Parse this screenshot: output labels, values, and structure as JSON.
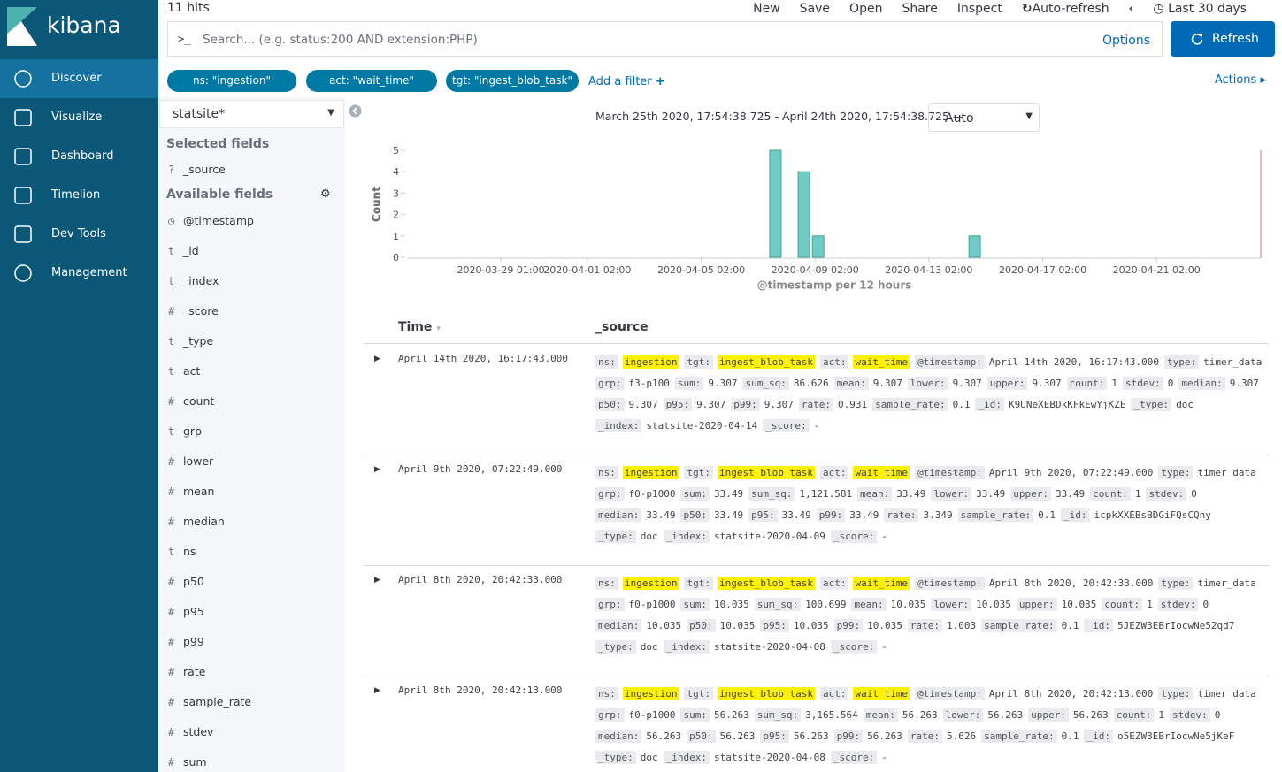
{
  "nav": {
    "logo": "kibana",
    "items": [
      "Discover",
      "Visualize",
      "Dashboard",
      "Timelion",
      "Dev Tools",
      "Management"
    ]
  },
  "topbar": {
    "hits": "11 hits",
    "menu": [
      "New",
      "Save",
      "Open",
      "Share",
      "Inspect",
      "Auto-refresh"
    ],
    "time_range": "Last 30 days",
    "search_prompt": ">_",
    "search_placeholder": "Search... (e.g. status:200 AND extension:PHP)",
    "options": "Options",
    "refresh": "Refresh"
  },
  "filters": {
    "pills": [
      "ns: \"ingestion\"",
      "act: \"wait_time\"",
      "tgt: \"ingest_blob_task\""
    ],
    "add": "Add a filter",
    "actions": "Actions"
  },
  "sidebar": {
    "index": "statsite*",
    "selected_title": "Selected fields",
    "selected": [
      {
        "type": "?",
        "name": "_source"
      }
    ],
    "available_title": "Available fields",
    "available": [
      {
        "name": "@timestamp"
      },
      {
        "type": "t",
        "name": "_id"
      },
      {
        "type": "t",
        "name": "_index"
      },
      {
        "type": "#",
        "name": "_score"
      },
      {
        "type": "t",
        "name": "_type"
      },
      {
        "type": "t",
        "name": "act"
      },
      {
        "type": "#",
        "name": "count"
      },
      {
        "type": "t",
        "name": "grp"
      },
      {
        "type": "#",
        "name": "lower"
      },
      {
        "type": "#",
        "name": "mean"
      },
      {
        "type": "#",
        "name": "median"
      },
      {
        "type": "t",
        "name": "ns"
      },
      {
        "type": "#",
        "name": "p50"
      },
      {
        "type": "#",
        "name": "p95"
      },
      {
        "type": "#",
        "name": "p99"
      },
      {
        "type": "#",
        "name": "rate"
      },
      {
        "type": "#",
        "name": "sample_rate"
      },
      {
        "type": "#",
        "name": "stdev"
      },
      {
        "type": "#",
        "name": "sum"
      }
    ]
  },
  "histogram": {
    "range": "March 25th 2020, 17:54:38.725 - April 24th 2020, 17:54:38.725 —",
    "interval": "Auto"
  },
  "chart_data": {
    "type": "bar",
    "ylabel": "Count",
    "xlabel": "@timestamp per 12 hours",
    "x": [
      "2020-04-07 14:00",
      "2020-04-08 14:00",
      "2020-04-09 02:00",
      "2020-04-14 14:00"
    ],
    "values": [
      5,
      4,
      1,
      1
    ],
    "color": "#6fcbc3",
    "xlim": [
      "2020-03-25 17:54",
      "2020-04-24 17:54"
    ],
    "xticks": [
      "2020-03-29 01:00",
      "2020-04-01 02:00",
      "2020-04-05 02:00",
      "2020-04-09 02:00",
      "2020-04-13 02:00",
      "2020-04-17 02:00",
      "2020-04-21 02:00"
    ],
    "ylim": [
      0,
      5
    ],
    "yticks": [
      0,
      1,
      2,
      3,
      4,
      5
    ]
  },
  "documents": {
    "columns": [
      "Time",
      "_source"
    ],
    "rows": [
      {
        "time": "April 14th 2020, 16:17:43.000",
        "fields": [
          [
            "ns:",
            "ingestion"
          ],
          [
            "tgt:",
            "ingest_blob_task"
          ],
          [
            "act:",
            "wait_time"
          ],
          [
            "@timestamp:",
            "April 14th 2020, 16:17:43.000"
          ],
          [
            "type:",
            "timer_data"
          ],
          [
            "grp:",
            "f3-p100"
          ],
          [
            "sum:",
            "9.307"
          ],
          [
            "sum_sq:",
            "86.626"
          ],
          [
            "mean:",
            "9.307"
          ],
          [
            "lower:",
            "9.307"
          ],
          [
            "upper:",
            "9.307"
          ],
          [
            "count:",
            "1"
          ],
          [
            "stdev:",
            "0"
          ],
          [
            "median:",
            "9.307"
          ],
          [
            "p50:",
            "9.307"
          ],
          [
            "p95:",
            "9.307"
          ],
          [
            "p99:",
            "9.307"
          ],
          [
            "rate:",
            "0.931"
          ],
          [
            "sample_rate:",
            "0.1"
          ],
          [
            "_id:",
            "K9UNeXEBDkKFkEwYjKZE"
          ],
          [
            "_type:",
            "doc"
          ],
          [
            "_index:",
            "statsite-2020-04-14"
          ],
          [
            "_score:",
            "-"
          ]
        ]
      },
      {
        "time": "April 9th 2020, 07:22:49.000",
        "fields": [
          [
            "ns:",
            "ingestion"
          ],
          [
            "tgt:",
            "ingest_blob_task"
          ],
          [
            "act:",
            "wait_time"
          ],
          [
            "@timestamp:",
            "April 9th 2020, 07:22:49.000"
          ],
          [
            "type:",
            "timer_data"
          ],
          [
            "grp:",
            "f0-p1000"
          ],
          [
            "sum:",
            "33.49"
          ],
          [
            "sum_sq:",
            "1,121.581"
          ],
          [
            "mean:",
            "33.49"
          ],
          [
            "lower:",
            "33.49"
          ],
          [
            "upper:",
            "33.49"
          ],
          [
            "count:",
            "1"
          ],
          [
            "stdev:",
            "0"
          ],
          [
            "median:",
            "33.49"
          ],
          [
            "p50:",
            "33.49"
          ],
          [
            "p95:",
            "33.49"
          ],
          [
            "p99:",
            "33.49"
          ],
          [
            "rate:",
            "3.349"
          ],
          [
            "sample_rate:",
            "0.1"
          ],
          [
            "_id:",
            "icpkXXEBsBDGiFQsCQny"
          ],
          [
            "_type:",
            "doc"
          ],
          [
            "_index:",
            "statsite-2020-04-09"
          ],
          [
            "_score:",
            "-"
          ]
        ]
      },
      {
        "time": "April 8th 2020, 20:42:33.000",
        "fields": [
          [
            "ns:",
            "ingestion"
          ],
          [
            "tgt:",
            "ingest_blob_task"
          ],
          [
            "act:",
            "wait_time"
          ],
          [
            "@timestamp:",
            "April 8th 2020, 20:42:33.000"
          ],
          [
            "type:",
            "timer_data"
          ],
          [
            "grp:",
            "f0-p1000"
          ],
          [
            "sum:",
            "10.035"
          ],
          [
            "sum_sq:",
            "100.699"
          ],
          [
            "mean:",
            "10.035"
          ],
          [
            "lower:",
            "10.035"
          ],
          [
            "upper:",
            "10.035"
          ],
          [
            "count:",
            "1"
          ],
          [
            "stdev:",
            "0"
          ],
          [
            "median:",
            "10.035"
          ],
          [
            "p50:",
            "10.035"
          ],
          [
            "p95:",
            "10.035"
          ],
          [
            "p99:",
            "10.035"
          ],
          [
            "rate:",
            "1.003"
          ],
          [
            "sample_rate:",
            "0.1"
          ],
          [
            "_id:",
            "5JEZW3EBrIocwNe52qd7"
          ],
          [
            "_type:",
            "doc"
          ],
          [
            "_index:",
            "statsite-2020-04-08"
          ],
          [
            "_score:",
            "-"
          ]
        ]
      },
      {
        "time": "April 8th 2020, 20:42:13.000",
        "fields": [
          [
            "ns:",
            "ingestion"
          ],
          [
            "tgt:",
            "ingest_blob_task"
          ],
          [
            "act:",
            "wait_time"
          ],
          [
            "@timestamp:",
            "April 8th 2020, 20:42:13.000"
          ],
          [
            "type:",
            "timer_data"
          ],
          [
            "grp:",
            "f0-p1000"
          ],
          [
            "sum:",
            "56.263"
          ],
          [
            "sum_sq:",
            "3,165.564"
          ],
          [
            "mean:",
            "56.263"
          ],
          [
            "lower:",
            "56.263"
          ],
          [
            "upper:",
            "56.263"
          ],
          [
            "count:",
            "1"
          ],
          [
            "stdev:",
            "0"
          ],
          [
            "median:",
            "56.263"
          ],
          [
            "p50:",
            "56.263"
          ],
          [
            "p95:",
            "56.263"
          ],
          [
            "p99:",
            "56.263"
          ],
          [
            "rate:",
            "5.626"
          ],
          [
            "sample_rate:",
            "0.1"
          ],
          [
            "_id:",
            "o5EZW3EBrIocwNe5jKeF"
          ],
          [
            "_type:",
            "doc"
          ],
          [
            "_index:",
            "statsite-2020-04-08"
          ],
          [
            "_score:",
            "-"
          ]
        ]
      }
    ]
  }
}
